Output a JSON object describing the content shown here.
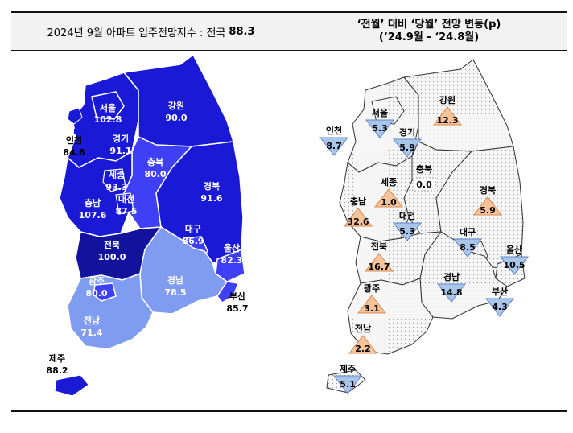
{
  "header": {
    "left_title": "2024년 9월 아파트 입주전망지수 : 전국",
    "left_value": "88.3",
    "right_title_line1": "‘전월’ 대비 ‘당월’ 전망 변동(p)",
    "right_title_line2": "(‘24.9월 - ‘24.8월)"
  },
  "colors": {
    "level_high": "#1a1ad6",
    "level_mid": "#3f3ff5",
    "level_low": "#7f9cf0",
    "level_dark": "#12129c",
    "up_triangle": "#f7c39b",
    "down_triangle": "#a9c6ea",
    "neutral": "#ffffff",
    "map_bg_right": "#f2f2f2"
  },
  "left_map": {
    "regions": [
      {
        "name": "서울",
        "value": "102.8"
      },
      {
        "name": "강원",
        "value": "90.0"
      },
      {
        "name": "인천",
        "value": "84.6"
      },
      {
        "name": "경기",
        "value": "91.1"
      },
      {
        "name": "충북",
        "value": "80.0"
      },
      {
        "name": "세종",
        "value": "93.3"
      },
      {
        "name": "경북",
        "value": "91.6"
      },
      {
        "name": "충남",
        "value": "107.6"
      },
      {
        "name": "대전",
        "value": "87.5"
      },
      {
        "name": "대구",
        "value": "86.9"
      },
      {
        "name": "전북",
        "value": "100.0"
      },
      {
        "name": "울산",
        "value": "82.3"
      },
      {
        "name": "광주",
        "value": "80.0"
      },
      {
        "name": "경남",
        "value": "78.5"
      },
      {
        "name": "부산",
        "value": "85.7"
      },
      {
        "name": "전남",
        "value": "71.4"
      },
      {
        "name": "제주",
        "value": "88.2"
      }
    ]
  },
  "right_map": {
    "regions": [
      {
        "name": "강원",
        "value": "12.3",
        "direction": "up"
      },
      {
        "name": "서울",
        "value": "5.3",
        "direction": "down"
      },
      {
        "name": "인천",
        "value": "8.7",
        "direction": "down"
      },
      {
        "name": "경기",
        "value": "5.9",
        "direction": "down"
      },
      {
        "name": "세종",
        "value": "1.0",
        "direction": "up"
      },
      {
        "name": "충북",
        "value": "0.0",
        "direction": "none"
      },
      {
        "name": "경북",
        "value": "5.9",
        "direction": "up"
      },
      {
        "name": "충남",
        "value": "32.6",
        "direction": "up"
      },
      {
        "name": "대전",
        "value": "5.3",
        "direction": "down"
      },
      {
        "name": "전북",
        "value": "16.7",
        "direction": "up"
      },
      {
        "name": "대구",
        "value": "8.5",
        "direction": "down"
      },
      {
        "name": "울산",
        "value": "10.5",
        "direction": "down"
      },
      {
        "name": "광주",
        "value": "3.1",
        "direction": "up"
      },
      {
        "name": "경남",
        "value": "14.8",
        "direction": "down"
      },
      {
        "name": "부산",
        "value": "4.3",
        "direction": "down"
      },
      {
        "name": "전남",
        "value": "2.2",
        "direction": "up"
      },
      {
        "name": "제주",
        "value": "5.1",
        "direction": "down"
      }
    ]
  }
}
